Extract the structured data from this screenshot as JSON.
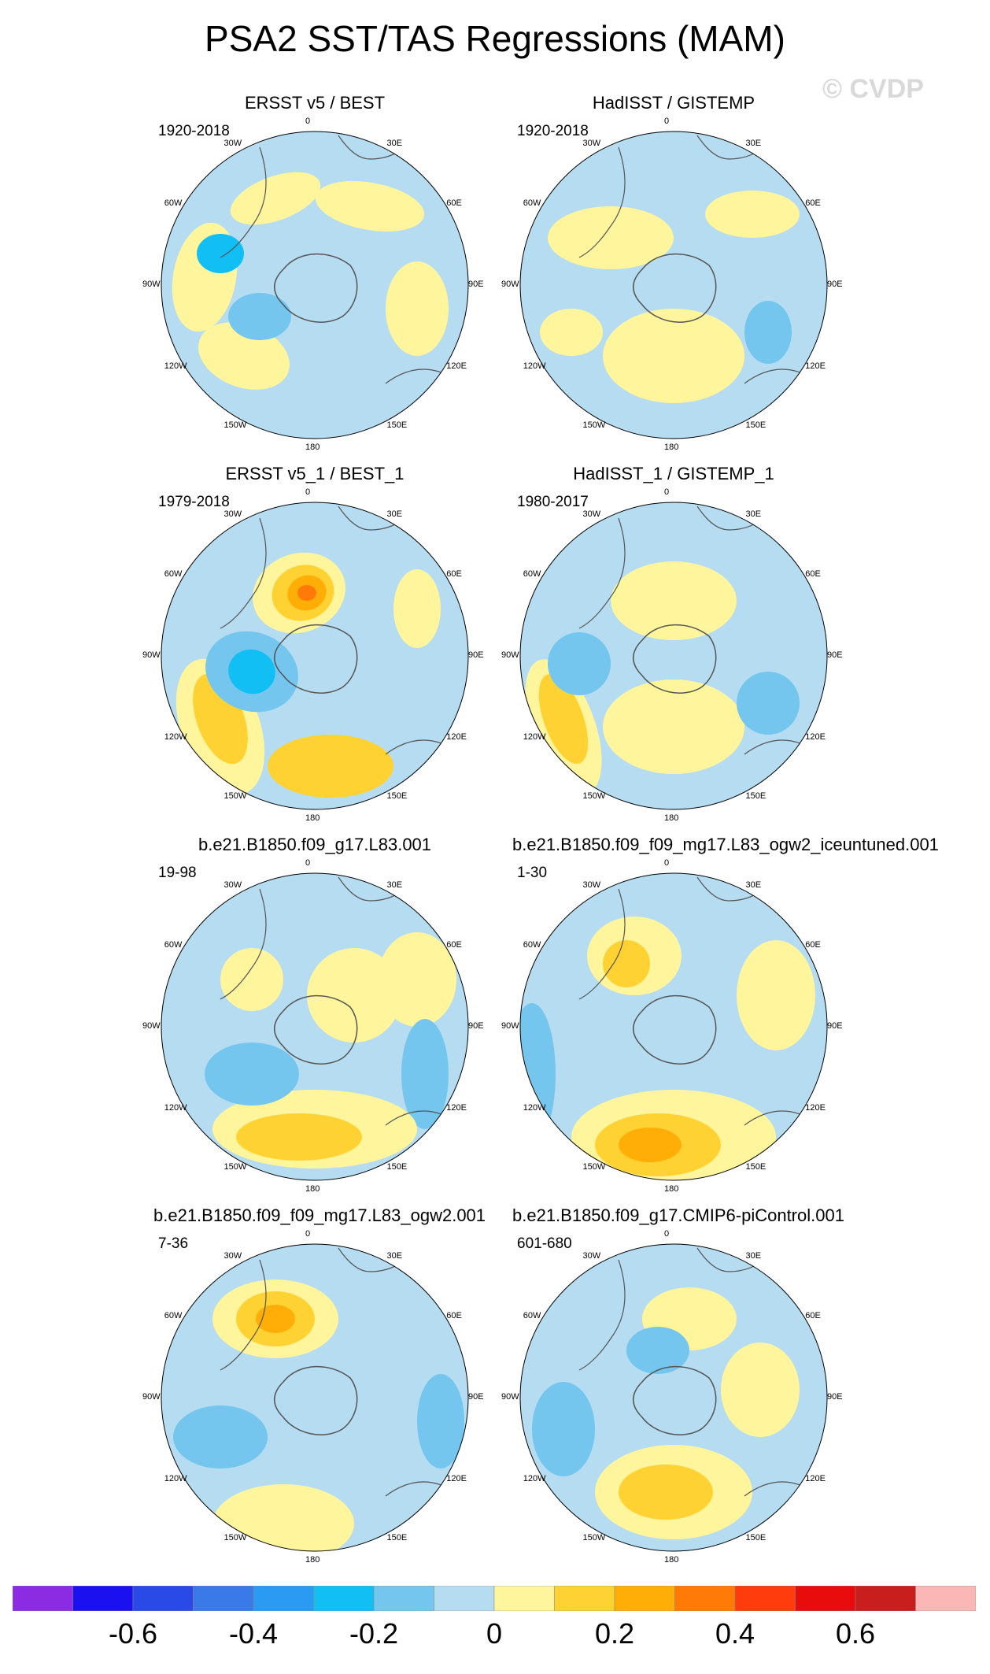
{
  "title": "PSA2 SST/TAS Regressions (MAM)",
  "watermark": "© CVDP",
  "panels": [
    {
      "title": "ERSST v5 / BEST",
      "range": "1920-2018"
    },
    {
      "title": "HadISST / GISTEMP",
      "range": "1920-2018"
    },
    {
      "title": "ERSST v5_1 / BEST_1",
      "range": "1979-2018"
    },
    {
      "title": "HadISST_1 / GISTEMP_1",
      "range": "1980-2017"
    },
    {
      "title": "b.e21.B1850.f09_g17.L83.001",
      "range": "19-98"
    },
    {
      "title": "b.e21.B1850.f09_f09_mg17.L83_ogw2_iceuntuned.001",
      "range": "1-30"
    },
    {
      "title": "b.e21.B1850.f09_f09_mg17.L83_ogw2.001",
      "range": "7-36"
    },
    {
      "title": "b.e21.B1850.f09_g17.CMIP6-piControl.001",
      "range": "601-680"
    }
  ],
  "lon_labels": {
    "deg0": "0",
    "e30": "30E",
    "e60": "60E",
    "e90": "90E",
    "e120": "120E",
    "e150": "150E",
    "deg180": "180",
    "w150": "150W",
    "w120": "120W",
    "w90": "90W",
    "w60": "60W",
    "w30": "30W"
  },
  "colorbar": {
    "colors": [
      "#8b2be2",
      "#1a10f0",
      "#2a4ae8",
      "#3a7ae8",
      "#2a9af2",
      "#12bff5",
      "#74c6ef",
      "#b5dcf0",
      "#fff59d",
      "#ffd233",
      "#ffae08",
      "#ff7a06",
      "#fe3c0c",
      "#e80c0c",
      "#c81e1e",
      "#fbb6b6"
    ],
    "ticks": [
      "-0.6",
      "-0.4",
      "-0.2",
      "0",
      "0.2",
      "0.4",
      "0.6"
    ]
  }
}
